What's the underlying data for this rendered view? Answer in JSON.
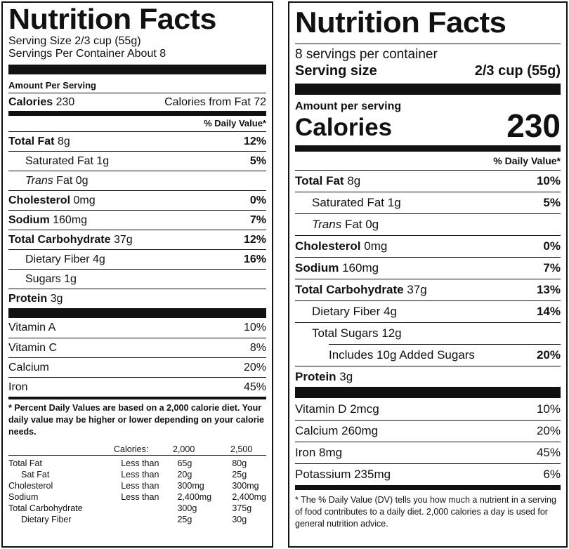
{
  "left": {
    "title": "Nutrition Facts",
    "serving_size": "Serving Size 2/3 cup (55g)",
    "servings_per_container": "Servings Per Container About 8",
    "amount_per_serving": "Amount Per Serving",
    "calories_label": "Calories",
    "calories_value": "230",
    "calories_from_fat": "Calories from Fat 72",
    "dv_header": "% Daily Value*",
    "nutrients": [
      {
        "name": "Total Fat",
        "amount": "8g",
        "dv": "12%"
      },
      {
        "name": "Saturated Fat",
        "amount": "1g",
        "dv": "5%"
      },
      {
        "name": "Trans",
        "name_rest": "Fat 0g",
        "dv": ""
      },
      {
        "name": "Cholesterol",
        "amount": "0mg",
        "dv": "0%"
      },
      {
        "name": "Sodium",
        "amount": "160mg",
        "dv": "7%"
      },
      {
        "name": "Total Carbohydrate",
        "amount": "37g",
        "dv": "12%"
      },
      {
        "name": "Dietary Fiber",
        "amount": "4g",
        "dv": "16%"
      },
      {
        "name": "Sugars",
        "amount": "1g",
        "dv": ""
      },
      {
        "name": "Protein",
        "amount": "3g",
        "dv": ""
      }
    ],
    "vitamins": [
      {
        "name": "Vitamin A",
        "dv": "10%"
      },
      {
        "name": "Vitamin C",
        "dv": "8%"
      },
      {
        "name": "Calcium",
        "dv": "20%"
      },
      {
        "name": "Iron",
        "dv": "45%"
      }
    ],
    "footnote": "* Percent Daily Values are based on a 2,000 calorie diet. Your daily value may be higher or lower depending on your calorie needs.",
    "footnote_table": {
      "header": [
        "",
        "Calories:",
        "2,000",
        "2,500"
      ],
      "rows": [
        [
          "Total Fat",
          "Less than",
          "65g",
          "80g"
        ],
        [
          "Sat Fat",
          "Less than",
          "20g",
          "25g"
        ],
        [
          "Cholesterol",
          "Less than",
          "300mg",
          "300mg"
        ],
        [
          "Sodium",
          "Less than",
          "2,400mg",
          "2,400mg"
        ],
        [
          "Total Carbohydrate",
          "",
          "300g",
          "375g"
        ],
        [
          "Dietary Fiber",
          "",
          "25g",
          "30g"
        ]
      ]
    }
  },
  "right": {
    "title": "Nutrition Facts",
    "servings_per_container": "8 servings per container",
    "serving_size_label": "Serving size",
    "serving_size_value": "2/3 cup (55g)",
    "amount_per_serving": "Amount per serving",
    "calories_label": "Calories",
    "calories_value": "230",
    "dv_header": "% Daily Value*",
    "nutrients": [
      {
        "name": "Total Fat",
        "amount": "8g",
        "dv": "10%"
      },
      {
        "name": "Saturated Fat",
        "amount": "1g",
        "dv": "5%"
      },
      {
        "name": "Trans",
        "name_rest": "Fat 0g",
        "dv": ""
      },
      {
        "name": "Cholesterol",
        "amount": "0mg",
        "dv": "0%"
      },
      {
        "name": "Sodium",
        "amount": "160mg",
        "dv": "7%"
      },
      {
        "name": "Total Carbohydrate",
        "amount": "37g",
        "dv": "13%"
      },
      {
        "name": "Dietary Fiber",
        "amount": "4g",
        "dv": "14%"
      },
      {
        "name": "Total Sugars",
        "amount": "12g",
        "dv": ""
      },
      {
        "name": "Includes 10g Added Sugars",
        "amount": "",
        "dv": "20%"
      },
      {
        "name": "Protein",
        "amount": "3g",
        "dv": ""
      }
    ],
    "vitamins": [
      {
        "name": "Vitamin D 2mcg",
        "dv": "10%"
      },
      {
        "name": "Calcium 260mg",
        "dv": "20%"
      },
      {
        "name": "Iron 8mg",
        "dv": "45%"
      },
      {
        "name": "Potassium 235mg",
        "dv": "6%"
      }
    ],
    "footnote": "* The % Daily Value (DV) tells you how much a nutrient in a serving of food contributes to a daily diet. 2,000 calories a day is used for general nutrition advice."
  }
}
